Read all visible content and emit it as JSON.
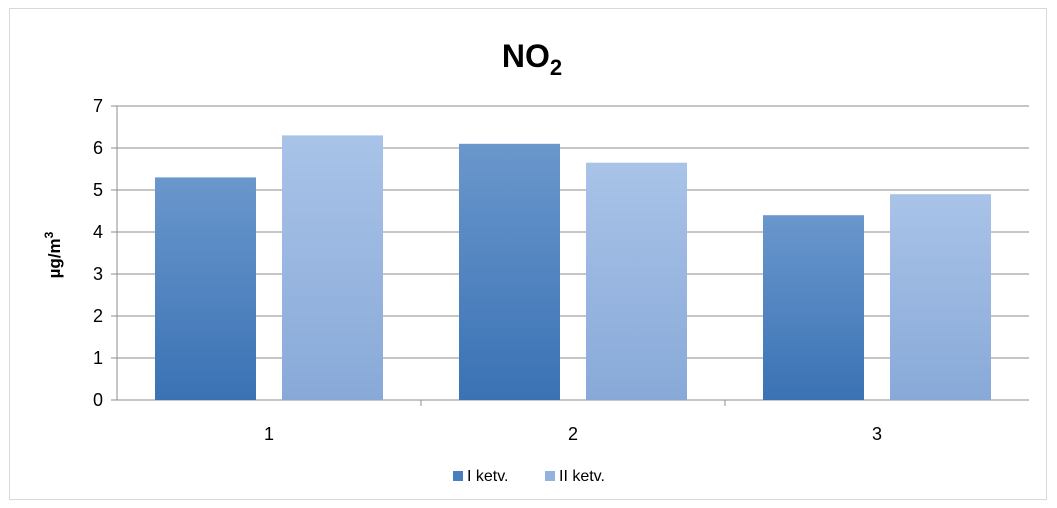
{
  "chart_data": {
    "type": "bar",
    "title": "NO",
    "title_subscript": "2",
    "ylabel": "µg/m",
    "ylabel_superscript": "3",
    "xlabel": "",
    "categories": [
      "1",
      "2",
      "3"
    ],
    "ylim": [
      0,
      7
    ],
    "yticks": [
      "0",
      "1",
      "2",
      "3",
      "4",
      "5",
      "6",
      "7"
    ],
    "grid": true,
    "legend_position": "bottom",
    "series": [
      {
        "name": "I ketv.",
        "values": [
          5.3,
          6.1,
          4.4
        ],
        "color": "#4a7fbf"
      },
      {
        "name": "II ketv.",
        "values": [
          6.3,
          5.65,
          4.9
        ],
        "color": "#93b3de"
      }
    ]
  }
}
